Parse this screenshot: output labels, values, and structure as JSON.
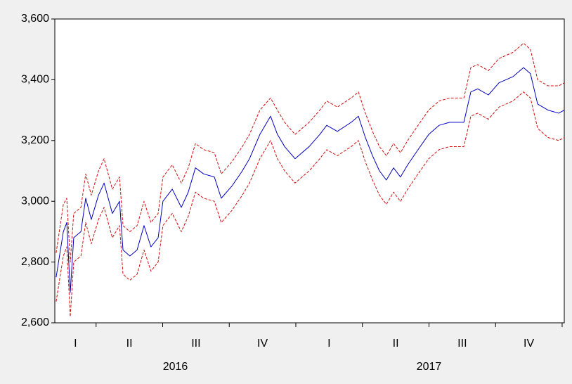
{
  "chart_data": {
    "type": "line",
    "xlim": [
      2016.095,
      2018.008
    ],
    "xticks": [
      2016.25,
      2016.5,
      2016.75,
      2017,
      2017.25,
      2017.5,
      2017.75,
      2018
    ],
    "quarter_labels": [
      "I",
      "II",
      "III",
      "IV",
      "I",
      "II",
      "III",
      "IV"
    ],
    "years": [
      "2016",
      "2017"
    ],
    "ylim": [
      2600,
      3600
    ],
    "yticks": [
      {
        "value": 2600,
        "label": "2,600"
      },
      {
        "value": 2800,
        "label": "2,800"
      },
      {
        "value": 3000,
        "label": "3,000"
      },
      {
        "value": 3200,
        "label": "3,200"
      },
      {
        "value": 3400,
        "label": "3,400"
      },
      {
        "value": 3600,
        "label": "3,600"
      }
    ],
    "x": [
      2016.1,
      2016.127,
      2016.14,
      2016.153,
      2016.166,
      2016.193,
      2016.211,
      2016.232,
      2016.259,
      2016.28,
      2016.311,
      2016.338,
      2016.351,
      2016.377,
      2016.404,
      2016.43,
      2016.456,
      2016.483,
      2016.501,
      2016.536,
      2016.57,
      2016.596,
      2016.623,
      2016.654,
      2016.694,
      2016.72,
      2016.76,
      2016.799,
      2016.826,
      2016.865,
      2016.905,
      2016.931,
      2016.958,
      2016.997,
      2017.05,
      2017.09,
      2017.116,
      2017.156,
      2017.208,
      2017.235,
      2017.261,
      2017.288,
      2017.314,
      2017.34,
      2017.367,
      2017.393,
      2017.42,
      2017.459,
      2017.499,
      2017.538,
      2017.578,
      2017.631,
      2017.657,
      2017.683,
      2017.723,
      2017.763,
      2017.815,
      2017.855,
      2017.881,
      2017.908,
      2017.947,
      2017.987,
      2018.008
    ],
    "series": [
      {
        "color": "#0000c0",
        "dashed": false,
        "values": [
          2750,
          2900,
          2930,
          2700,
          2880,
          2900,
          3010,
          2940,
          3020,
          3060,
          2960,
          3000,
          2840,
          2820,
          2840,
          2920,
          2850,
          2880,
          3000,
          3040,
          2980,
          3030,
          3110,
          3090,
          3080,
          3010,
          3050,
          3100,
          3140,
          3220,
          3280,
          3220,
          3180,
          3140,
          3180,
          3220,
          3250,
          3230,
          3260,
          3280,
          3210,
          3150,
          3100,
          3070,
          3110,
          3080,
          3120,
          3170,
          3220,
          3250,
          3260,
          3260,
          3360,
          3370,
          3350,
          3390,
          3410,
          3440,
          3420,
          3320,
          3300,
          3290,
          3300
        ]
      },
      {
        "color": "#d01010",
        "dashed": true,
        "values": [
          2830,
          2990,
          3010,
          2800,
          2960,
          2980,
          3090,
          3020,
          3100,
          3140,
          3040,
          3080,
          2920,
          2900,
          2920,
          3000,
          2930,
          2960,
          3080,
          3120,
          3060,
          3110,
          3190,
          3170,
          3160,
          3090,
          3130,
          3180,
          3220,
          3300,
          3340,
          3300,
          3260,
          3220,
          3260,
          3300,
          3330,
          3310,
          3340,
          3360,
          3290,
          3230,
          3180,
          3150,
          3190,
          3160,
          3200,
          3250,
          3300,
          3330,
          3340,
          3340,
          3440,
          3450,
          3430,
          3470,
          3490,
          3520,
          3500,
          3400,
          3380,
          3380,
          3390
        ]
      },
      {
        "color": "#d01010",
        "dashed": true,
        "values": [
          2670,
          2820,
          2850,
          2620,
          2800,
          2820,
          2930,
          2860,
          2940,
          2980,
          2880,
          2920,
          2760,
          2740,
          2760,
          2840,
          2770,
          2800,
          2920,
          2960,
          2900,
          2950,
          3030,
          3010,
          3000,
          2930,
          2970,
          3020,
          3060,
          3140,
          3200,
          3140,
          3100,
          3060,
          3100,
          3140,
          3170,
          3150,
          3180,
          3200,
          3130,
          3070,
          3020,
          2990,
          3030,
          3000,
          3040,
          3090,
          3140,
          3170,
          3180,
          3180,
          3280,
          3290,
          3270,
          3310,
          3330,
          3360,
          3340,
          3240,
          3210,
          3200,
          3210
        ]
      }
    ]
  }
}
